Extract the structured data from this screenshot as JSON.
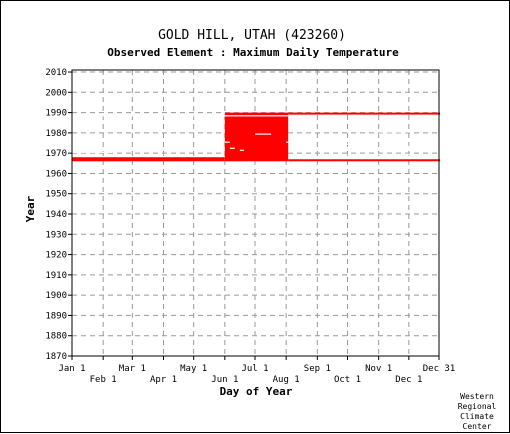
{
  "chart_data": {
    "type": "heatmap",
    "title": "GOLD HILL, UTAH   (423260)",
    "subtitle": "Observed Element : Maximum Daily Temperature",
    "xlabel": "Day of Year",
    "ylabel": "Year",
    "credit": [
      "Western",
      "Regional",
      "Climate",
      "Center"
    ],
    "xlim": [
      1,
      366
    ],
    "ylim": [
      1870,
      2011
    ],
    "x_ticks_top": [
      {
        "label": "Jan 1",
        "day": 1
      },
      {
        "label": "Mar 1",
        "day": 61
      },
      {
        "label": "May 1",
        "day": 122
      },
      {
        "label": "Jul 1",
        "day": 183
      },
      {
        "label": "Sep 1",
        "day": 245
      },
      {
        "label": "Nov 1",
        "day": 306
      },
      {
        "label": "Dec 31",
        "day": 366
      }
    ],
    "x_ticks_bottom": [
      {
        "label": "Feb 1",
        "day": 32
      },
      {
        "label": "Apr 1",
        "day": 92
      },
      {
        "label": "Jun 1",
        "day": 153
      },
      {
        "label": "Aug 1",
        "day": 214
      },
      {
        "label": "Oct 1",
        "day": 275
      },
      {
        "label": "Dec 1",
        "day": 336
      }
    ],
    "y_ticks": [
      1870,
      1880,
      1890,
      1900,
      1910,
      1920,
      1930,
      1940,
      1950,
      1960,
      1970,
      1980,
      1990,
      2000,
      2010
    ],
    "data_color": "#ff0000",
    "grid": true,
    "coverage": [
      {
        "start_year": 1966,
        "start_day": 153,
        "end_year": 1989,
        "end_day": 215
      },
      {
        "start_year": 1966,
        "start_day": 1,
        "end_year": 1967,
        "end_day": 152
      },
      {
        "start_year": 1989,
        "start_day": 216,
        "end_year": 1989,
        "end_day": 366
      },
      {
        "start_year": 1966,
        "start_day": 216,
        "end_year": 1966,
        "end_day": 366
      }
    ],
    "missing": [
      {
        "year": 1988,
        "start_day": 1,
        "end_day": 215
      },
      {
        "year": 1968,
        "start_day": 336,
        "end_day": 366
      },
      {
        "year": 1985,
        "start_day": 306,
        "end_day": 366
      },
      {
        "year": 1980,
        "start_day": 306,
        "end_day": 336
      },
      {
        "year": 1979,
        "start_day": 183,
        "end_day": 198
      },
      {
        "year": 1976,
        "start_day": 20,
        "end_day": 40
      },
      {
        "year": 1975,
        "start_day": 153,
        "end_day": 157
      },
      {
        "year": 1975,
        "start_day": 214,
        "end_day": 217
      },
      {
        "year": 1974,
        "start_day": 270,
        "end_day": 284
      },
      {
        "year": 1973,
        "start_day": 106,
        "end_day": 110
      },
      {
        "year": 1973,
        "start_day": 114,
        "end_day": 118
      },
      {
        "year": 1973,
        "start_day": 330,
        "end_day": 366
      },
      {
        "year": 1972,
        "start_day": 158,
        "end_day": 162
      },
      {
        "year": 1971,
        "start_day": 168,
        "end_day": 171
      },
      {
        "year": 1970,
        "start_day": 1,
        "end_day": 40
      },
      {
        "year": 1969,
        "start_day": 92,
        "end_day": 108
      },
      {
        "year": 1969,
        "start_day": 260,
        "end_day": 264
      },
      {
        "year": 1969,
        "start_day": 275,
        "end_day": 336
      },
      {
        "year": 1971,
        "start_day": 336,
        "end_day": 366
      },
      {
        "year": 1979,
        "start_day": 306,
        "end_day": 330
      }
    ]
  }
}
